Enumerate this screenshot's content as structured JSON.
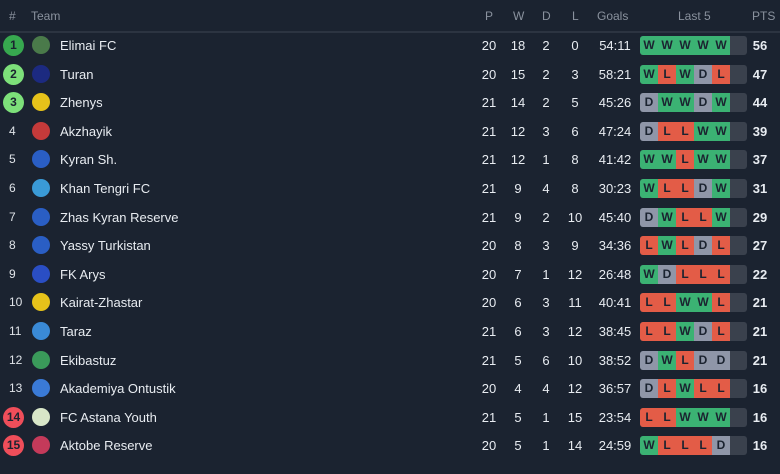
{
  "header": {
    "rank": "#",
    "team": "Team",
    "p": "P",
    "w": "W",
    "d": "D",
    "l": "L",
    "goals": "Goals",
    "last5": "Last 5",
    "pts": "PTS"
  },
  "colors": {
    "win": "#3bb273",
    "loss": "#e35c47",
    "draw": "#8f96a8",
    "champion": "#37a84f",
    "promotion": "#7de07a",
    "relegation": "#ef4e5a"
  },
  "rows": [
    {
      "rank": "1",
      "team": "Elimai FC",
      "p": "20",
      "w": "18",
      "d": "2",
      "l": "0",
      "goals": "54:11",
      "form": [
        "W",
        "W",
        "W",
        "W",
        "W"
      ],
      "pts": "56",
      "zone": "champion",
      "logo": "#4a7a4a"
    },
    {
      "rank": "2",
      "team": "Turan",
      "p": "20",
      "w": "15",
      "d": "2",
      "l": "3",
      "goals": "58:21",
      "form": [
        "W",
        "L",
        "W",
        "D",
        "L"
      ],
      "pts": "47",
      "zone": "promotion",
      "logo": "#1c2a80"
    },
    {
      "rank": "3",
      "team": "Zhenys",
      "p": "21",
      "w": "14",
      "d": "2",
      "l": "5",
      "goals": "45:26",
      "form": [
        "D",
        "W",
        "W",
        "D",
        "W"
      ],
      "pts": "44",
      "zone": "promotion",
      "logo": "#e6c21a"
    },
    {
      "rank": "4",
      "team": "Akzhayik",
      "p": "21",
      "w": "12",
      "d": "3",
      "l": "6",
      "goals": "47:24",
      "form": [
        "D",
        "L",
        "L",
        "W",
        "W"
      ],
      "pts": "39",
      "logo": "#c43a3a"
    },
    {
      "rank": "5",
      "team": "Kyran Sh.",
      "p": "21",
      "w": "12",
      "d": "1",
      "l": "8",
      "goals": "41:42",
      "form": [
        "W",
        "W",
        "L",
        "W",
        "W"
      ],
      "pts": "37",
      "logo": "#2a5ec4"
    },
    {
      "rank": "6",
      "team": "Khan Tengri FC",
      "p": "21",
      "w": "9",
      "d": "4",
      "l": "8",
      "goals": "30:23",
      "form": [
        "W",
        "L",
        "L",
        "D",
        "W"
      ],
      "pts": "31",
      "logo": "#3a9ad6"
    },
    {
      "rank": "7",
      "team": "Zhas Kyran Reserve",
      "p": "21",
      "w": "9",
      "d": "2",
      "l": "10",
      "goals": "45:40",
      "form": [
        "D",
        "W",
        "L",
        "L",
        "W"
      ],
      "pts": "29",
      "logo": "#2a5ec4"
    },
    {
      "rank": "8",
      "team": "Yassy Turkistan",
      "p": "20",
      "w": "8",
      "d": "3",
      "l": "9",
      "goals": "34:36",
      "form": [
        "L",
        "W",
        "L",
        "D",
        "L"
      ],
      "pts": "27",
      "logo": "#2a5ec4"
    },
    {
      "rank": "9",
      "team": "FK Arys",
      "p": "20",
      "w": "7",
      "d": "1",
      "l": "12",
      "goals": "26:48",
      "form": [
        "W",
        "D",
        "L",
        "L",
        "L"
      ],
      "pts": "22",
      "logo": "#2a4ec4"
    },
    {
      "rank": "10",
      "team": "Kairat-Zhastar",
      "p": "20",
      "w": "6",
      "d": "3",
      "l": "11",
      "goals": "40:41",
      "form": [
        "L",
        "L",
        "W",
        "W",
        "L"
      ],
      "pts": "21",
      "logo": "#e6c21a"
    },
    {
      "rank": "11",
      "team": "Taraz",
      "p": "21",
      "w": "6",
      "d": "3",
      "l": "12",
      "goals": "38:45",
      "form": [
        "L",
        "L",
        "W",
        "D",
        "L"
      ],
      "pts": "21",
      "logo": "#3a8ad6"
    },
    {
      "rank": "12",
      "team": "Ekibastuz",
      "p": "21",
      "w": "5",
      "d": "6",
      "l": "10",
      "goals": "38:52",
      "form": [
        "D",
        "W",
        "L",
        "D",
        "D"
      ],
      "pts": "21",
      "logo": "#3a9a5a"
    },
    {
      "rank": "13",
      "team": "Akademiya Ontustik",
      "p": "20",
      "w": "4",
      "d": "4",
      "l": "12",
      "goals": "36:57",
      "form": [
        "D",
        "L",
        "W",
        "L",
        "L"
      ],
      "pts": "16",
      "logo": "#3a7ad6"
    },
    {
      "rank": "14",
      "team": "FC Astana Youth",
      "p": "21",
      "w": "5",
      "d": "1",
      "l": "15",
      "goals": "23:54",
      "form": [
        "L",
        "L",
        "W",
        "W",
        "W"
      ],
      "pts": "16",
      "zone": "relegation",
      "logo": "#d8e6c8"
    },
    {
      "rank": "15",
      "team": "Aktobe Reserve",
      "p": "20",
      "w": "5",
      "d": "1",
      "l": "14",
      "goals": "24:59",
      "form": [
        "W",
        "L",
        "L",
        "L",
        "D"
      ],
      "pts": "16",
      "zone": "relegation",
      "logo": "#c43a5a"
    }
  ]
}
